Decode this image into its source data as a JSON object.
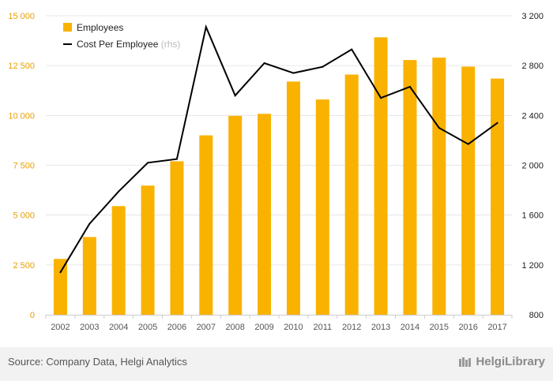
{
  "chart_data": {
    "type": "bar",
    "categories": [
      "2002",
      "2003",
      "2004",
      "2005",
      "2006",
      "2007",
      "2008",
      "2009",
      "2010",
      "2011",
      "2012",
      "2013",
      "2014",
      "2015",
      "2016",
      "2017"
    ],
    "series": [
      {
        "name": "Employees",
        "type": "bar",
        "axis": "left",
        "color": "#f9b200",
        "values": [
          2800,
          3900,
          5450,
          6480,
          7700,
          9000,
          9980,
          10080,
          11700,
          10800,
          12050,
          13920,
          12780,
          12900,
          12450,
          11850
        ]
      },
      {
        "name": "Cost Per Employee",
        "type": "line",
        "axis": "right",
        "color": "#000000",
        "values": [
          1140,
          1530,
          1790,
          2020,
          2050,
          3110,
          2560,
          2820,
          2740,
          2790,
          2930,
          2540,
          2630,
          2300,
          2170,
          2340
        ]
      }
    ],
    "legend": {
      "rhs_suffix": "(rhs)",
      "position": "top-left"
    },
    "left_axis": {
      "ylim": [
        0,
        15000
      ],
      "ticks": [
        "0",
        "2 500",
        "5 000",
        "7 500",
        "10 000",
        "12 500",
        "15 000"
      ]
    },
    "right_axis": {
      "ylim": [
        800,
        3200
      ],
      "ticks": [
        "800",
        "1 200",
        "1 600",
        "2 000",
        "2 400",
        "2 800",
        "3 200"
      ]
    },
    "grid": true
  },
  "footer": {
    "source": "Source: Company Data, Helgi Analytics",
    "brand": "HelgiLibrary"
  }
}
